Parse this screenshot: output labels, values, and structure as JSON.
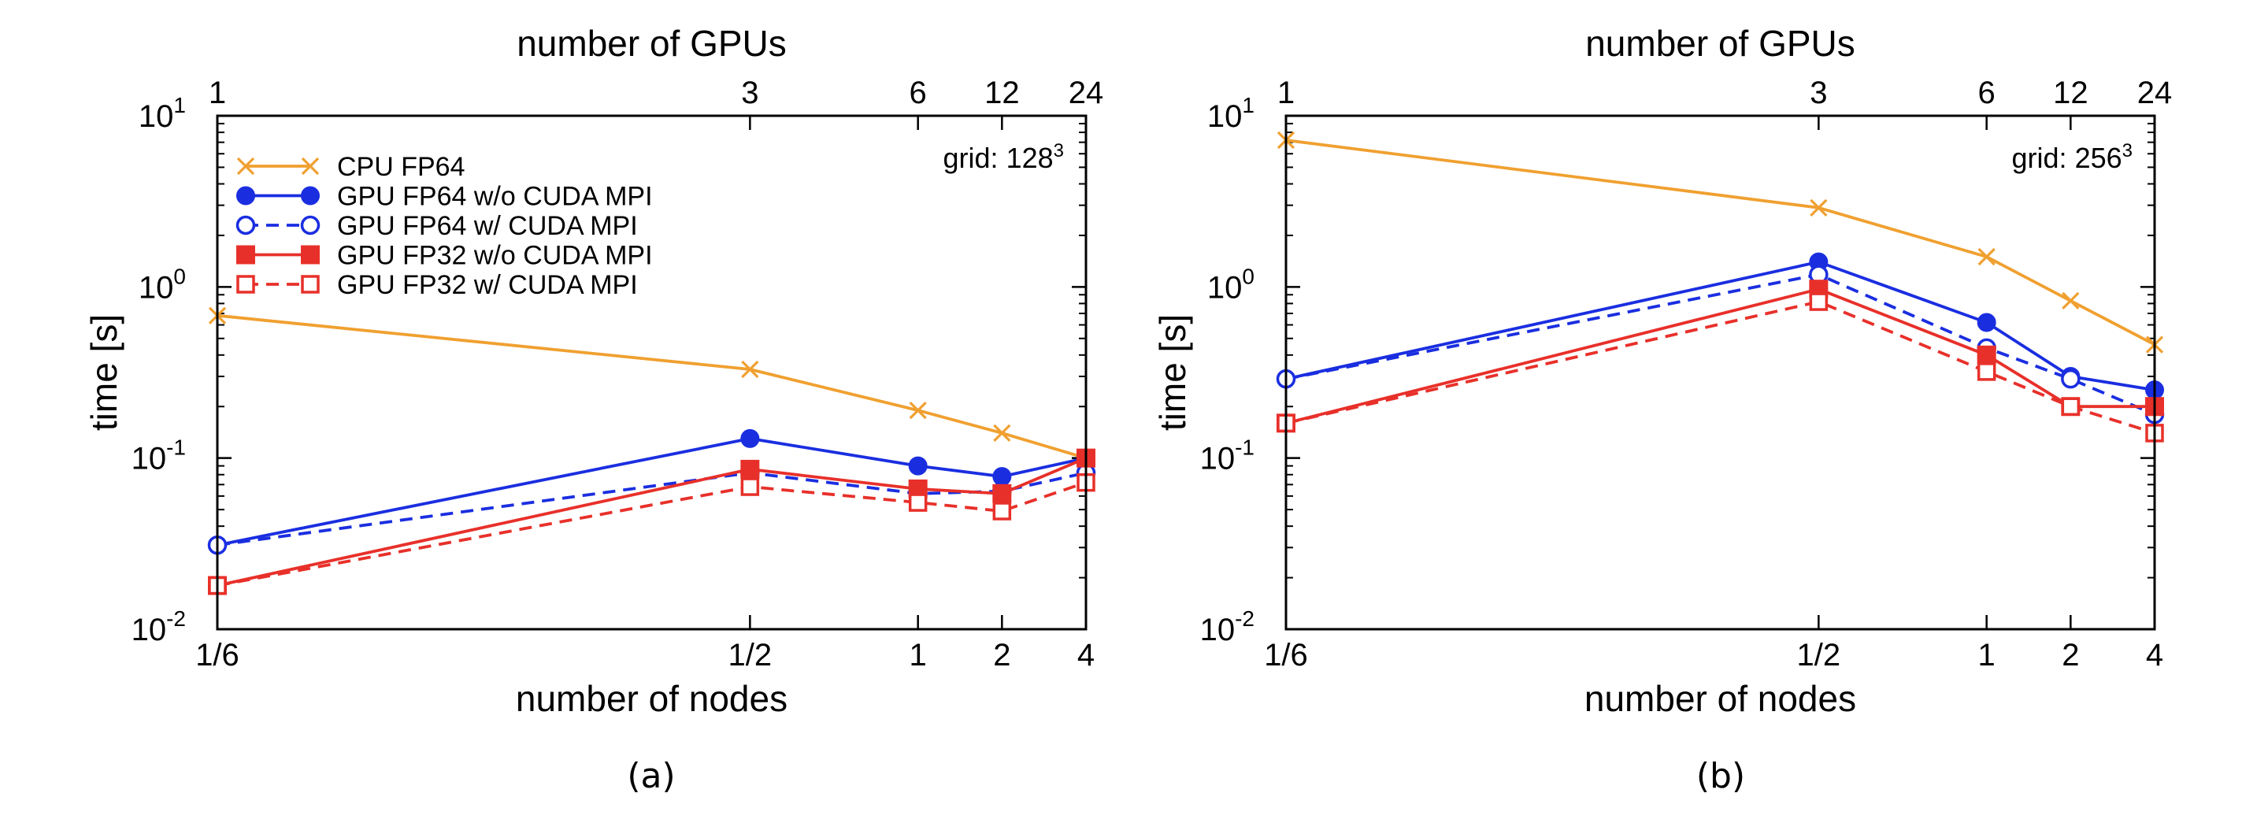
{
  "colors": {
    "cpu": "#f0a030",
    "gpu64": "#1a2ee0",
    "gpu32": "#e8302a",
    "axis": "#000000"
  },
  "chart_data": [
    {
      "type": "line",
      "panel_label": "(a)",
      "annotation_prefix": "grid: 128",
      "annotation_exp": "3",
      "xlabel": "number of nodes",
      "x2label": "number of GPUs",
      "ylabel": "time [s]",
      "y_scale": "log",
      "ylim": [
        0.01,
        10
      ],
      "y_ticks": [
        {
          "base": "10",
          "exp": "-2",
          "value": 0.01
        },
        {
          "base": "10",
          "exp": "-1",
          "value": 0.1
        },
        {
          "base": "10",
          "exp": "0",
          "value": 1
        },
        {
          "base": "10",
          "exp": "1",
          "value": 10
        }
      ],
      "categories": [
        "1/6",
        "1/2",
        "1",
        "2",
        "4"
      ],
      "gpu_counts": [
        "1",
        "3",
        "6",
        "12",
        "24"
      ],
      "legend_location": "top-left",
      "series": [
        {
          "name": "CPU FP64",
          "color_key": "cpu",
          "marker": "x",
          "dash": false,
          "values": [
            0.68,
            0.33,
            0.19,
            0.14,
            0.1
          ]
        },
        {
          "name": "GPU FP64 w/o CUDA MPI",
          "color_key": "gpu64",
          "marker": "circle-filled",
          "dash": false,
          "values": [
            0.031,
            0.13,
            0.09,
            0.078,
            0.1
          ]
        },
        {
          "name": "GPU FP64 w/ CUDA MPI",
          "color_key": "gpu64",
          "marker": "circle-open",
          "dash": true,
          "values": [
            0.031,
            0.082,
            0.062,
            0.064,
            0.082
          ]
        },
        {
          "name": "GPU FP32 w/o CUDA MPI",
          "color_key": "gpu32",
          "marker": "square-filled",
          "dash": false,
          "values": [
            0.018,
            0.086,
            0.066,
            0.062,
            0.1
          ]
        },
        {
          "name": "GPU FP32 w/ CUDA MPI",
          "color_key": "gpu32",
          "marker": "square-open",
          "dash": true,
          "values": [
            0.018,
            0.068,
            0.055,
            0.049,
            0.072
          ]
        }
      ]
    },
    {
      "type": "line",
      "panel_label": "(b)",
      "annotation_prefix": "grid: 256",
      "annotation_exp": "3",
      "xlabel": "number of nodes",
      "x2label": "number of GPUs",
      "ylabel": "time [s]",
      "y_scale": "log",
      "ylim": [
        0.01,
        10
      ],
      "y_ticks": [
        {
          "base": "10",
          "exp": "-2",
          "value": 0.01
        },
        {
          "base": "10",
          "exp": "-1",
          "value": 0.1
        },
        {
          "base": "10",
          "exp": "0",
          "value": 1
        },
        {
          "base": "10",
          "exp": "1",
          "value": 10
        }
      ],
      "categories": [
        "1/6",
        "1/2",
        "1",
        "2",
        "4"
      ],
      "gpu_counts": [
        "1",
        "3",
        "6",
        "12",
        "24"
      ],
      "legend_location": "none",
      "series": [
        {
          "name": "CPU FP64",
          "color_key": "cpu",
          "marker": "x",
          "dash": false,
          "values": [
            7.2,
            2.9,
            1.5,
            0.83,
            0.46
          ]
        },
        {
          "name": "GPU FP64 w/o CUDA MPI",
          "color_key": "gpu64",
          "marker": "circle-filled",
          "dash": false,
          "values": [
            0.29,
            1.4,
            0.62,
            0.3,
            0.25
          ]
        },
        {
          "name": "GPU FP64 w/ CUDA MPI",
          "color_key": "gpu64",
          "marker": "circle-open",
          "dash": true,
          "values": [
            0.29,
            1.18,
            0.44,
            0.29,
            0.18
          ]
        },
        {
          "name": "GPU FP32 w/o CUDA MPI",
          "color_key": "gpu32",
          "marker": "square-filled",
          "dash": false,
          "values": [
            0.16,
            0.97,
            0.4,
            0.2,
            0.2
          ]
        },
        {
          "name": "GPU FP32 w/ CUDA MPI",
          "color_key": "gpu32",
          "marker": "square-open",
          "dash": true,
          "values": [
            0.16,
            0.82,
            0.32,
            0.2,
            0.14
          ]
        }
      ]
    }
  ]
}
